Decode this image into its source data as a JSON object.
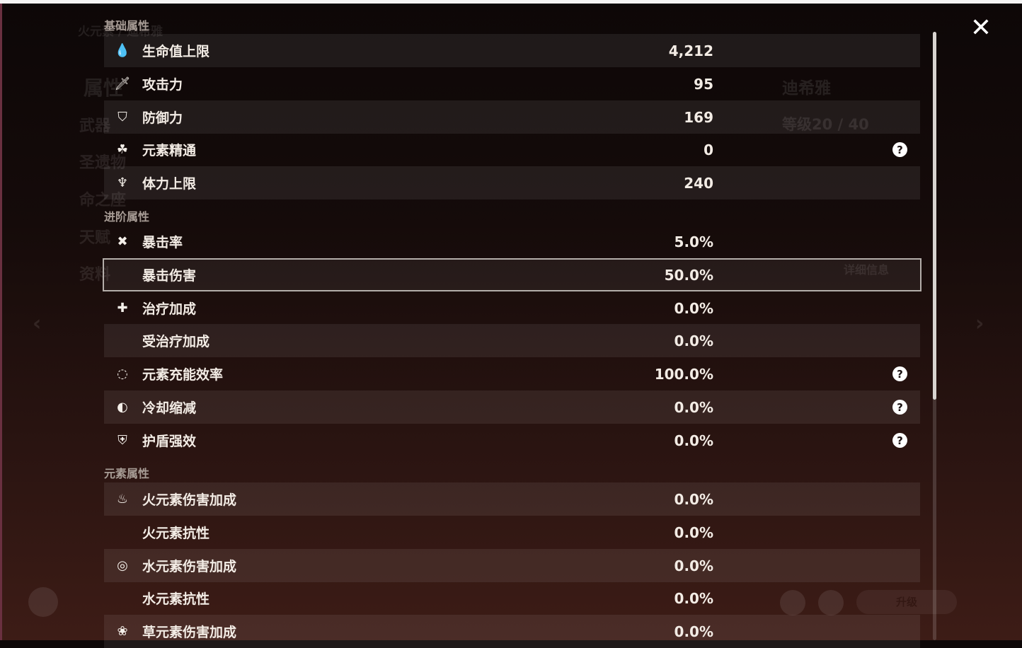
{
  "background": {
    "element_title": "火元素 / 迪希雅",
    "nav": [
      "属性",
      "武器",
      "圣遗物",
      "命之座",
      "天赋",
      "资料"
    ],
    "character_name": "迪希雅",
    "level": "等级20 / 40",
    "detail_button": "详细信息",
    "upgrade_button": "升级"
  },
  "sections": [
    {
      "title": "基础属性",
      "rows": [
        {
          "icon": "droplet-icon",
          "glyph": "💧",
          "label": "生命值上限",
          "value": "4,212",
          "help": false
        },
        {
          "icon": "sword-icon",
          "glyph": "🗡",
          "label": "攻击力",
          "value": "95",
          "help": false
        },
        {
          "icon": "shield-icon",
          "glyph": "⛉",
          "label": "防御力",
          "value": "169",
          "help": false
        },
        {
          "icon": "elemental-mastery-icon",
          "glyph": "☘",
          "label": "元素精通",
          "value": "0",
          "help": true
        },
        {
          "icon": "stamina-icon",
          "glyph": "♆",
          "label": "体力上限",
          "value": "240",
          "help": false
        }
      ]
    },
    {
      "title": "进阶属性",
      "rows": [
        {
          "icon": "crit-rate-icon",
          "glyph": "✖",
          "label": "暴击率",
          "value": "5.0%",
          "help": false
        },
        {
          "icon": "",
          "glyph": "",
          "label": "暴击伤害",
          "value": "50.0%",
          "help": false
        },
        {
          "icon": "healing-cross-icon",
          "glyph": "✚",
          "label": "治疗加成",
          "value": "0.0%",
          "help": false
        },
        {
          "icon": "",
          "glyph": "",
          "label": "受治疗加成",
          "value": "0.0%",
          "help": false
        },
        {
          "icon": "energy-recharge-icon",
          "glyph": "◌",
          "label": "元素充能效率",
          "value": "100.0%",
          "help": true
        },
        {
          "icon": "cooldown-icon",
          "glyph": "◐",
          "label": "冷却缩减",
          "value": "0.0%",
          "help": true
        },
        {
          "icon": "shield-strength-icon",
          "glyph": "⛨",
          "label": "护盾强效",
          "value": "0.0%",
          "help": true
        }
      ]
    },
    {
      "title": "元素属性",
      "rows": [
        {
          "icon": "pyro-icon",
          "glyph": "♨",
          "label": "火元素伤害加成",
          "value": "0.0%",
          "help": false
        },
        {
          "icon": "",
          "glyph": "",
          "label": "火元素抗性",
          "value": "0.0%",
          "help": false
        },
        {
          "icon": "hydro-icon",
          "glyph": "◎",
          "label": "水元素伤害加成",
          "value": "0.0%",
          "help": false
        },
        {
          "icon": "",
          "glyph": "",
          "label": "水元素抗性",
          "value": "0.0%",
          "help": false
        },
        {
          "icon": "dendro-icon",
          "glyph": "❀",
          "label": "草元素伤害加成",
          "value": "0.0%",
          "help": false
        }
      ]
    }
  ],
  "help_glyph": "?",
  "close_glyph": "✕",
  "scroll_position": 0
}
